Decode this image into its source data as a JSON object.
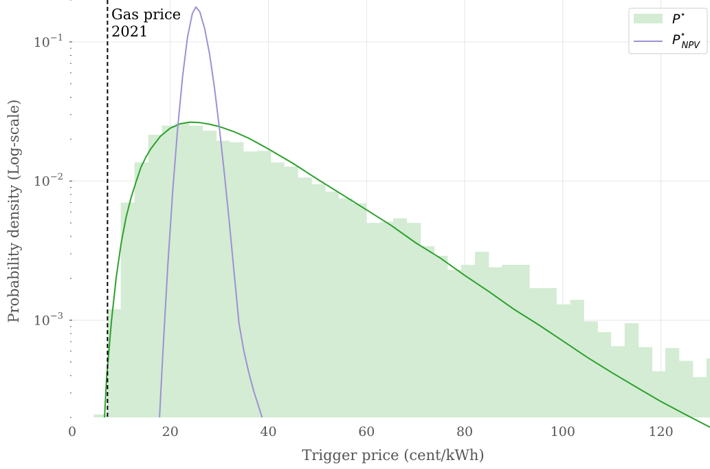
{
  "chart_data": {
    "type": "histogram+line",
    "xlabel": "Trigger price (cent/kWh)",
    "ylabel": "Probability density (Log-scale)",
    "xlim": [
      0,
      130
    ],
    "ylim": [
      0.0002,
      0.2
    ],
    "yscale": "log",
    "grid": true,
    "xticks": [
      0,
      20,
      40,
      60,
      80,
      100,
      120
    ],
    "xtick_labels": [
      "0",
      "20",
      "40",
      "60",
      "80",
      "100",
      "120"
    ],
    "yticks": [
      0.001,
      0.01,
      0.1
    ],
    "ytick_labels": [
      {
        "base": "10",
        "exp": "−3"
      },
      {
        "base": "10",
        "exp": "−2"
      },
      {
        "base": "10",
        "exp": "−1"
      }
    ],
    "legend": {
      "placement": "top-right",
      "entries": [
        {
          "label_main": "P",
          "label_sup": "⋆",
          "label_sub": "",
          "kind": "patch",
          "color": "#d3ecd3"
        },
        {
          "label_main": "P",
          "label_sup": "⋆",
          "label_sub": "NPV",
          "kind": "line",
          "color": "#9b91d4"
        }
      ]
    },
    "annotation": {
      "line1": "Gas price",
      "line2": "2021",
      "x": 7.2
    },
    "histogram": {
      "color": "#d3ecd3",
      "bin_edges": [
        4.4,
        7.2,
        9.9,
        12.7,
        15.5,
        18.3,
        21.0,
        23.8,
        26.6,
        29.4,
        32.1,
        34.9,
        37.7,
        40.5,
        43.2,
        46.0,
        48.8,
        51.6,
        54.3,
        57.1,
        59.9,
        62.7,
        65.4,
        68.2,
        71.0,
        73.8,
        76.5,
        79.3,
        82.1,
        84.9,
        87.6,
        90.4,
        93.2,
        96.0,
        98.7,
        101.5,
        104.3,
        107.1,
        109.8,
        112.6,
        115.4,
        118.2,
        120.9,
        123.7,
        126.5,
        129.3,
        130
      ],
      "values": [
        0.00021,
        0.0012,
        0.007,
        0.0136,
        0.0215,
        0.025,
        0.026,
        0.025,
        0.023,
        0.0195,
        0.019,
        0.0163,
        0.0165,
        0.0136,
        0.0127,
        0.0106,
        0.0095,
        0.0084,
        0.0075,
        0.0069,
        0.005,
        0.0051,
        0.0054,
        0.005,
        0.0034,
        0.0029,
        0.0023,
        0.0025,
        0.0031,
        0.0024,
        0.0025,
        0.0025,
        0.0017,
        0.0017,
        0.0013,
        0.0014,
        0.00098,
        0.00082,
        0.00065,
        0.00095,
        0.00064,
        0.00043,
        0.00063,
        0.00051,
        0.00039,
        0.00053
      ]
    },
    "series": [
      {
        "name": "",
        "color": "#2ca02c",
        "x": [
          6.6,
          7,
          8,
          9,
          10,
          11,
          12,
          13,
          14,
          15,
          16,
          18,
          20,
          22,
          24,
          26,
          28,
          30,
          33,
          36,
          40,
          45,
          50,
          55,
          60,
          65,
          70,
          75,
          80,
          85,
          90,
          95,
          100,
          105,
          110,
          115,
          120,
          125,
          130
        ],
        "y": [
          0.0002,
          0.00038,
          0.00098,
          0.00205,
          0.0036,
          0.0055,
          0.0076,
          0.0098,
          0.0125,
          0.0148,
          0.017,
          0.021,
          0.024,
          0.0258,
          0.0265,
          0.0263,
          0.0256,
          0.0246,
          0.0226,
          0.0203,
          0.017,
          0.0134,
          0.0103,
          0.008,
          0.0062,
          0.0048,
          0.0036,
          0.0028,
          0.0021,
          0.0016,
          0.0012,
          0.00093,
          0.00071,
          0.00054,
          0.00042,
          0.00033,
          0.00026,
          0.00021,
          0.00017
        ]
      },
      {
        "name": "",
        "color": "#9b91d4",
        "x": [
          17.8,
          18.5,
          19.5,
          20.5,
          21.5,
          22.5,
          23.5,
          24.5,
          25.2,
          26,
          27,
          28,
          29,
          30,
          31,
          32,
          33,
          34,
          35,
          36,
          37,
          38,
          38.7
        ],
        "y": [
          0.0002,
          0.0006,
          0.0025,
          0.0085,
          0.024,
          0.056,
          0.108,
          0.16,
          0.178,
          0.165,
          0.125,
          0.082,
          0.047,
          0.024,
          0.0115,
          0.0052,
          0.0022,
          0.00095,
          0.0006,
          0.00042,
          0.00031,
          0.00024,
          0.0002
        ]
      }
    ],
    "vline": {
      "x": 7.2,
      "style": "dashed",
      "color": "#000000"
    }
  }
}
